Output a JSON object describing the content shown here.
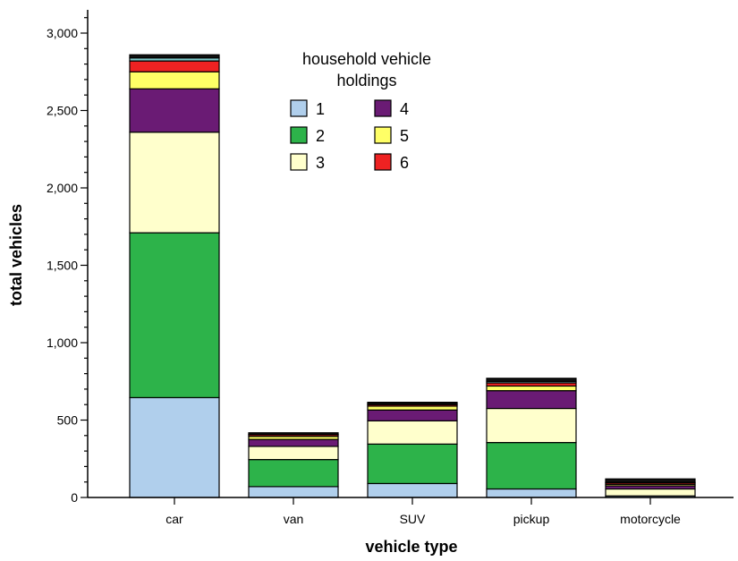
{
  "chart_data": {
    "type": "bar",
    "stacked": true,
    "categories": [
      "car",
      "van",
      "SUV",
      "pickup",
      "motorcycle"
    ],
    "xlabel": "vehicle type",
    "ylabel": "total vehicles",
    "ylim": [
      0,
      3150
    ],
    "yticks": [
      0,
      500,
      1000,
      1500,
      2000,
      2500,
      3000
    ],
    "ytick_labels": [
      "0",
      "500",
      "1,000",
      "1,500",
      "2,000",
      "2,500",
      "3,000"
    ],
    "legend": {
      "title_line1": "household vehicle",
      "title_line2": "holdings",
      "placement": "top-center"
    },
    "series": [
      {
        "name": "1",
        "color": "#b0cfec",
        "values": [
          645,
          70,
          90,
          55,
          10
        ]
      },
      {
        "name": "2",
        "color": "#2db34a",
        "values": [
          1065,
          175,
          255,
          300,
          0
        ]
      },
      {
        "name": "3",
        "color": "#ffffcc",
        "values": [
          650,
          85,
          150,
          220,
          45
        ]
      },
      {
        "name": "4",
        "color": "#6a1b74",
        "values": [
          280,
          45,
          70,
          115,
          20
        ]
      },
      {
        "name": "5",
        "color": "#ffff66",
        "values": [
          110,
          20,
          25,
          30,
          10
        ]
      },
      {
        "name": "6",
        "color": "#ee2222",
        "values": [
          70,
          10,
          10,
          20,
          10
        ]
      },
      {
        "name": "",
        "color": "#7ec8c8",
        "values": [
          20,
          3,
          5,
          10,
          3
        ]
      },
      {
        "name": "",
        "color": "#111111",
        "values": [
          20,
          10,
          10,
          20,
          22
        ]
      }
    ]
  }
}
